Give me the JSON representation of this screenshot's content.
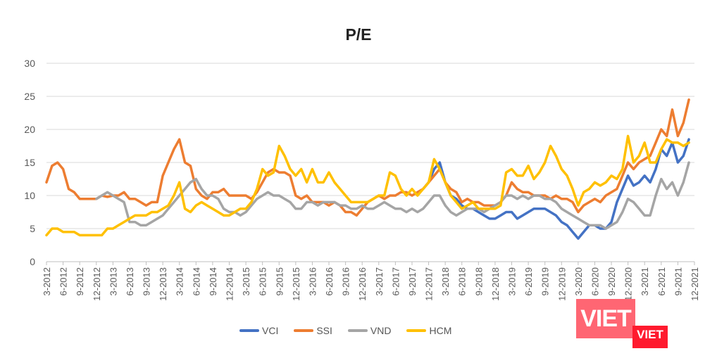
{
  "chart_data": {
    "type": "line",
    "title": "P/E",
    "xlabel": "",
    "ylabel": "",
    "ylim": [
      0,
      30
    ],
    "yticks": [
      "0",
      "5",
      "10",
      "15",
      "20",
      "25",
      "30"
    ],
    "xticks": [
      "3-2012",
      "6-2012",
      "9-2012",
      "12-2012",
      "3-2013",
      "6-2013",
      "9-2013",
      "12-2013",
      "3-2014",
      "6-2014",
      "9-2014",
      "12-2014",
      "3-2015",
      "6-2015",
      "9-2015",
      "12-2015",
      "3-2016",
      "6-2016",
      "9-2016",
      "12-2016",
      "3-2017",
      "6-2017",
      "9-2017",
      "12-2017",
      "3-2018",
      "6-2018",
      "9-2018",
      "12-2018",
      "3-2019",
      "6-2019",
      "9-2019",
      "12-2019",
      "3-2020",
      "6-2020",
      "9-2020",
      "12-2020",
      "3-2021",
      "6-2021",
      "9-2021",
      "12-2021"
    ],
    "grid": true,
    "legend": "bottom",
    "dates": [
      "3-2012",
      "4-2012",
      "5-2012",
      "6-2012",
      "7-2012",
      "8-2012",
      "9-2012",
      "10-2012",
      "11-2012",
      "12-2012",
      "1-2013",
      "2-2013",
      "3-2013",
      "4-2013",
      "5-2013",
      "6-2013",
      "7-2013",
      "8-2013",
      "9-2013",
      "10-2013",
      "11-2013",
      "12-2013",
      "1-2014",
      "2-2014",
      "3-2014",
      "4-2014",
      "5-2014",
      "6-2014",
      "7-2014",
      "8-2014",
      "9-2014",
      "10-2014",
      "11-2014",
      "12-2014",
      "1-2015",
      "2-2015",
      "3-2015",
      "4-2015",
      "5-2015",
      "6-2015",
      "7-2015",
      "8-2015",
      "9-2015",
      "10-2015",
      "11-2015",
      "12-2015",
      "1-2016",
      "2-2016",
      "3-2016",
      "4-2016",
      "5-2016",
      "6-2016",
      "7-2016",
      "8-2016",
      "9-2016",
      "10-2016",
      "11-2016",
      "12-2016",
      "1-2017",
      "2-2017",
      "3-2017",
      "4-2017",
      "5-2017",
      "6-2017",
      "7-2017",
      "8-2017",
      "9-2017",
      "10-2017",
      "11-2017",
      "12-2017",
      "1-2018",
      "2-2018",
      "3-2018",
      "4-2018",
      "5-2018",
      "6-2018",
      "7-2018",
      "8-2018",
      "9-2018",
      "10-2018",
      "11-2018",
      "12-2018",
      "1-2019",
      "2-2019",
      "3-2019",
      "4-2019",
      "5-2019",
      "6-2019",
      "7-2019",
      "8-2019",
      "9-2019",
      "10-2019",
      "11-2019",
      "12-2019",
      "1-2020",
      "2-2020",
      "3-2020",
      "4-2020",
      "5-2020",
      "6-2020",
      "7-2020",
      "8-2020",
      "9-2020",
      "10-2020",
      "11-2020",
      "12-2020",
      "1-2021",
      "2-2021",
      "3-2021",
      "4-2021",
      "5-2021",
      "6-2021",
      "7-2021",
      "8-2021",
      "9-2021",
      "10-2021",
      "11-2021"
    ],
    "series": [
      {
        "name": "VCI",
        "color": "#4472C4",
        "values": [
          null,
          null,
          null,
          null,
          null,
          null,
          null,
          null,
          null,
          null,
          null,
          null,
          null,
          null,
          null,
          null,
          null,
          null,
          null,
          null,
          null,
          null,
          null,
          null,
          null,
          null,
          null,
          null,
          null,
          null,
          null,
          null,
          null,
          null,
          null,
          null,
          null,
          null,
          null,
          null,
          null,
          null,
          null,
          null,
          null,
          null,
          null,
          null,
          null,
          null,
          null,
          null,
          null,
          null,
          null,
          null,
          null,
          null,
          null,
          null,
          null,
          null,
          null,
          null,
          null,
          null,
          null,
          null,
          11,
          12,
          14,
          15,
          12,
          10,
          9.5,
          8.5,
          8,
          8,
          7.5,
          7,
          6.5,
          6.5,
          7,
          7.5,
          7.5,
          6.5,
          7,
          7.5,
          8,
          8,
          8,
          7.5,
          7,
          6,
          5.5,
          4.5,
          3.5,
          4.5,
          5.5,
          5.5,
          5,
          5,
          6,
          9,
          11,
          13,
          11.5,
          12,
          13,
          12,
          14,
          17,
          16,
          18,
          15,
          16,
          18.5
        ]
      },
      {
        "name": "SSI",
        "color": "#ED7D31",
        "values": [
          12,
          14.5,
          15,
          14,
          11,
          10.5,
          9.5,
          9.5,
          9.5,
          9.5,
          10,
          9.8,
          10,
          10,
          10.5,
          9.5,
          9.5,
          9,
          8.5,
          9,
          9,
          13,
          15,
          17,
          18.5,
          15,
          14.5,
          11,
          10,
          9.5,
          10.5,
          10.5,
          11,
          10,
          10,
          10,
          10,
          9.5,
          10.5,
          12,
          13.5,
          14,
          13.5,
          13.5,
          13,
          10,
          9.5,
          10,
          9,
          9,
          9,
          8.5,
          9,
          8.5,
          7.5,
          7.5,
          7,
          8,
          9,
          9.5,
          10,
          9.5,
          10,
          10,
          10.5,
          10.5,
          10,
          10.5,
          11,
          12,
          13,
          14,
          12,
          11,
          10.5,
          9,
          9.5,
          9,
          9,
          8.5,
          8.5,
          8.5,
          9,
          10,
          12,
          11,
          10.5,
          10.5,
          10,
          10,
          10,
          9.5,
          10,
          9.5,
          9.5,
          9,
          7.5,
          8.5,
          9,
          9.5,
          9,
          10,
          10.5,
          11,
          13,
          15,
          14,
          15,
          15.5,
          16,
          18,
          20,
          19,
          23,
          19,
          21,
          24.5
        ]
      },
      {
        "name": "VND",
        "color": "#A5A5A5",
        "values": [
          null,
          null,
          null,
          null,
          null,
          null,
          null,
          null,
          null,
          9.5,
          10,
          10.5,
          10,
          9.5,
          9,
          6,
          6,
          5.5,
          5.5,
          6,
          6.5,
          7,
          8,
          9,
          10,
          11,
          12,
          12.5,
          11,
          10,
          10,
          9.5,
          8,
          7.5,
          7.5,
          7,
          7.5,
          8.5,
          9.5,
          10,
          10.5,
          10,
          10,
          9.5,
          9,
          8,
          8,
          9,
          9,
          8.5,
          9,
          9,
          9,
          8.5,
          8.5,
          8,
          8,
          8.5,
          8,
          8,
          8.5,
          9,
          8.5,
          8,
          8,
          7.5,
          8,
          7.5,
          8,
          9,
          10,
          10,
          8.5,
          7.5,
          7,
          7.5,
          8,
          8,
          8,
          7.5,
          8,
          8.5,
          9,
          10,
          10,
          9.5,
          10,
          9.5,
          10,
          10,
          9.5,
          9.5,
          9,
          8,
          7.5,
          7,
          6.5,
          6,
          5.5,
          5.5,
          5.5,
          5,
          5.5,
          6,
          7.5,
          9.5,
          9,
          8,
          7,
          7,
          10,
          12.5,
          11,
          12,
          10,
          12,
          15
        ]
      },
      {
        "name": "HCM",
        "color": "#FFC000",
        "values": [
          4,
          5,
          5,
          4.5,
          4.5,
          4.5,
          4,
          4,
          4,
          4,
          4,
          5,
          5,
          5.5,
          6,
          6.5,
          7,
          7,
          7,
          7.5,
          7.5,
          8,
          8.5,
          10,
          12,
          8,
          7.5,
          8.5,
          9,
          8.5,
          8,
          7.5,
          7,
          7,
          7.5,
          8,
          8,
          9,
          11,
          14,
          13,
          13.5,
          17.5,
          16,
          14,
          13,
          14,
          12,
          14,
          12,
          12,
          13.5,
          12,
          11,
          10,
          9,
          9,
          9,
          9,
          9.5,
          10,
          10,
          13.5,
          13,
          11,
          10,
          11,
          10,
          11,
          12,
          15.5,
          14,
          12,
          10,
          9,
          8,
          8.5,
          9,
          8,
          8,
          8,
          8,
          8.5,
          13.5,
          14,
          13,
          13,
          14.5,
          12.5,
          13.5,
          15,
          17.5,
          16,
          14,
          13,
          11,
          8.5,
          10.5,
          11,
          12,
          11.5,
          12,
          13,
          12.5,
          14,
          19,
          15,
          16,
          18,
          15,
          15,
          17,
          18.5,
          18,
          18,
          17.5,
          18
        ]
      }
    ]
  },
  "logo": {
    "text_large": "VIET",
    "text_small": "VIET"
  }
}
